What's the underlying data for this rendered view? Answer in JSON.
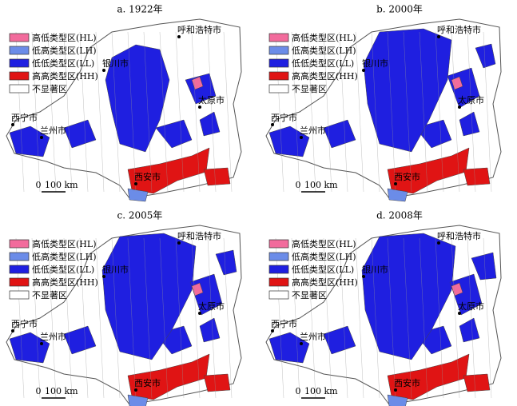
{
  "panels": [
    {
      "title": "a. 1922年"
    },
    {
      "title": "b. 2000年"
    },
    {
      "title": "c. 2005年"
    },
    {
      "title": "d. 2008年"
    }
  ],
  "legend": [
    "高低类型区(HL)",
    "低高类型区(LH)",
    "低低类型区(LL)",
    "高高类型区(HH)",
    "不显著区"
  ],
  "cities": [
    "呼和浩特市",
    "银川市",
    "太原市",
    "西宁市",
    "兰州市",
    "西安市"
  ],
  "scale": {
    "zero": "0",
    "label": "100 km"
  }
}
